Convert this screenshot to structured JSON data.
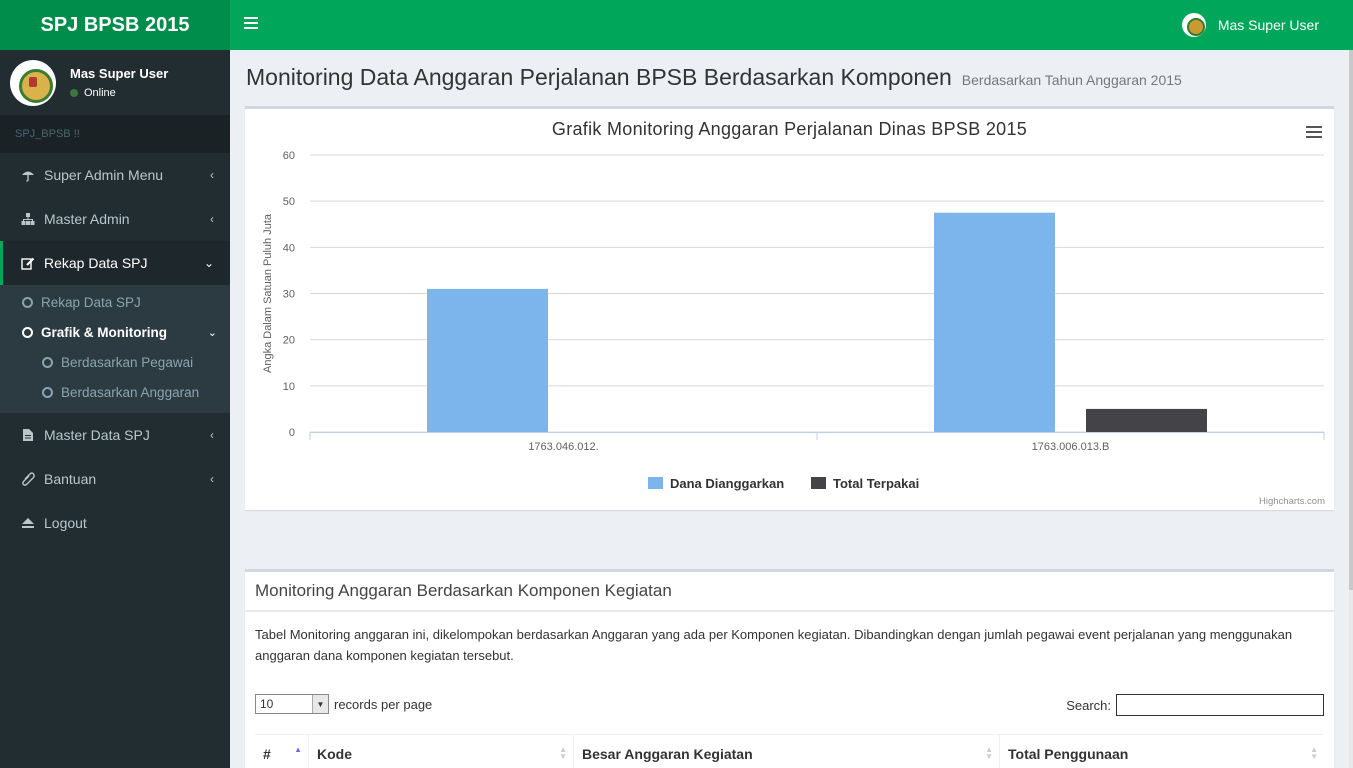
{
  "app": {
    "title": "SPJ BPSB 2015"
  },
  "header": {
    "user_name": "Mas Super User"
  },
  "sidebar": {
    "user_name": "Mas Super User",
    "status": "Online",
    "section_label": "SPJ_BPSB !!",
    "items": [
      {
        "label": "Super Admin Menu",
        "icon": "umbrella-icon"
      },
      {
        "label": "Master Admin",
        "icon": "sitemap-icon"
      },
      {
        "label": "Rekap Data SPJ",
        "icon": "edit-icon"
      },
      {
        "label": "Master Data SPJ",
        "icon": "file-icon"
      },
      {
        "label": "Bantuan",
        "icon": "paperclip-icon"
      },
      {
        "label": "Logout",
        "icon": "eject-icon"
      }
    ],
    "sub_items": [
      {
        "label": "Rekap Data SPJ"
      },
      {
        "label": "Grafik & Monitoring"
      }
    ],
    "subsub_items": [
      {
        "label": "Berdasarkan Pegawai"
      },
      {
        "label": "Berdasarkan Anggaran"
      }
    ]
  },
  "page": {
    "title": "Monitoring Data Anggaran Perjalanan BPSB Berdasarkan Komponen",
    "subtitle": "Berdasarkan Tahun Anggaran 2015"
  },
  "chart_data": {
    "type": "bar",
    "title": "Grafik Monitoring Anggaran Perjalanan Dinas BPSB 2015",
    "xlabel": "",
    "ylabel": "Angka Dalam Satuan Puluh Juta",
    "ylim": [
      0,
      60
    ],
    "yticks": [
      "0",
      "10",
      "20",
      "30",
      "40",
      "50",
      "60"
    ],
    "categories": [
      "1763.046.012.",
      "1763.006.013.B"
    ],
    "series": [
      {
        "name": "Dana Dianggarkan",
        "values": [
          31,
          47.5
        ],
        "color": "#7cb5ec"
      },
      {
        "name": "Total Terpakai",
        "values": [
          0,
          5
        ],
        "color": "#434348"
      }
    ],
    "grid": true,
    "legend": "bottom-center",
    "credits": "Highcharts.com"
  },
  "table_section": {
    "title": "Monitoring Anggaran Berdasarkan Komponen Kegiatan",
    "description": "Tabel Monitoring anggaran ini, dikelompokan berdasarkan Anggaran yang ada per Komponen kegiatan. Dibandingkan dengan jumlah pegawai event perjalanan yang menggunakan anggaran dana komponen kegiatan tersebut.",
    "length_value": "10",
    "length_label": "records per page",
    "search_label": "Search:",
    "columns": [
      "#",
      "Kode",
      "Besar Anggaran Kegiatan",
      "Total Penggunaan"
    ]
  }
}
